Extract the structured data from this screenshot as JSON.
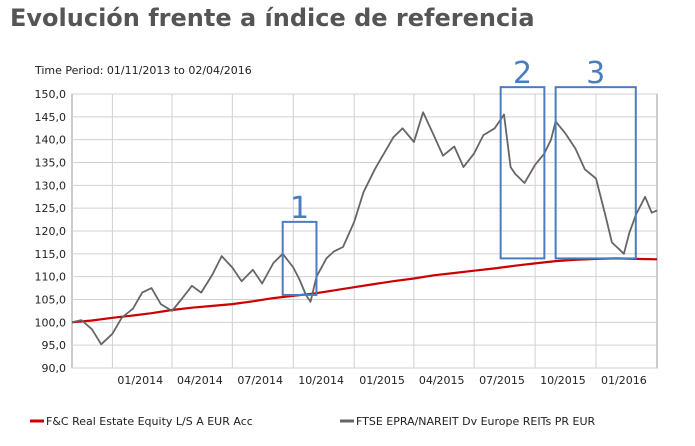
{
  "slide": {
    "title": "Evolución frente a índice de referencia"
  },
  "chart_data": {
    "type": "line",
    "title": "",
    "subtitle": "Time Period: 01/11/2013 to 02/04/2016",
    "xlabel": "",
    "ylabel": "",
    "xlim": [
      "2013-11-01",
      "2016-04-02"
    ],
    "ylim": [
      90,
      150
    ],
    "y_ticks": [
      "90,0",
      "95,0",
      "100,0",
      "105,0",
      "110,0",
      "115,0",
      "120,0",
      "125,0",
      "130,0",
      "135,0",
      "140,0",
      "145,0",
      "150,0"
    ],
    "x_ticks": [
      {
        "label": "01/2014",
        "date": "2014-01-01"
      },
      {
        "label": "04/2014",
        "date": "2014-04-01"
      },
      {
        "label": "07/2014",
        "date": "2014-07-01"
      },
      {
        "label": "10/2014",
        "date": "2014-10-01"
      },
      {
        "label": "01/2015",
        "date": "2015-01-01"
      },
      {
        "label": "04/2015",
        "date": "2015-04-01"
      },
      {
        "label": "07/2015",
        "date": "2015-07-01"
      },
      {
        "label": "10/2015",
        "date": "2015-10-01"
      },
      {
        "label": "01/2016",
        "date": "2016-01-01"
      }
    ],
    "grid": true,
    "legend_position": "bottom",
    "series": [
      {
        "name": "F&C Real Estate Equity L/S A EUR Acc",
        "color": "#cc0000",
        "points": [
          [
            "2013-11-01",
            100.0
          ],
          [
            "2013-12-01",
            100.4
          ],
          [
            "2014-01-01",
            101.0
          ],
          [
            "2014-02-01",
            101.5
          ],
          [
            "2014-03-01",
            102.0
          ],
          [
            "2014-04-01",
            102.7
          ],
          [
            "2014-05-01",
            103.2
          ],
          [
            "2014-06-01",
            103.6
          ],
          [
            "2014-07-01",
            104.0
          ],
          [
            "2014-08-01",
            104.6
          ],
          [
            "2014-09-01",
            105.3
          ],
          [
            "2014-10-01",
            105.8
          ],
          [
            "2014-11-01",
            106.3
          ],
          [
            "2014-12-01",
            107.0
          ],
          [
            "2015-01-01",
            107.7
          ],
          [
            "2015-02-01",
            108.4
          ],
          [
            "2015-03-01",
            109.0
          ],
          [
            "2015-04-01",
            109.6
          ],
          [
            "2015-05-01",
            110.3
          ],
          [
            "2015-06-01",
            110.8
          ],
          [
            "2015-07-01",
            111.3
          ],
          [
            "2015-08-01",
            111.8
          ],
          [
            "2015-09-01",
            112.4
          ],
          [
            "2015-10-01",
            112.9
          ],
          [
            "2015-11-01",
            113.4
          ],
          [
            "2015-12-01",
            113.7
          ],
          [
            "2016-01-01",
            113.9
          ],
          [
            "2016-02-01",
            114.0
          ],
          [
            "2016-03-01",
            113.9
          ],
          [
            "2016-04-02",
            113.8
          ]
        ]
      },
      {
        "name": "FTSE EPRA/NAREIT Dv Europe REITs PR EUR",
        "color": "#666666",
        "points": [
          [
            "2013-11-01",
            100.0
          ],
          [
            "2013-11-15",
            100.5
          ],
          [
            "2013-12-01",
            98.5
          ],
          [
            "2013-12-15",
            95.2
          ],
          [
            "2014-01-01",
            97.5
          ],
          [
            "2014-01-15",
            101.0
          ],
          [
            "2014-02-01",
            103.0
          ],
          [
            "2014-02-15",
            106.5
          ],
          [
            "2014-03-01",
            107.5
          ],
          [
            "2014-03-15",
            104.0
          ],
          [
            "2014-04-01",
            102.5
          ],
          [
            "2014-04-15",
            105.0
          ],
          [
            "2014-05-01",
            108.0
          ],
          [
            "2014-05-15",
            106.5
          ],
          [
            "2014-06-01",
            110.5
          ],
          [
            "2014-06-15",
            114.5
          ],
          [
            "2014-07-01",
            112.0
          ],
          [
            "2014-07-15",
            109.0
          ],
          [
            "2014-08-01",
            111.5
          ],
          [
            "2014-08-15",
            108.5
          ],
          [
            "2014-09-01",
            113.0
          ],
          [
            "2014-09-15",
            115.0
          ],
          [
            "2014-10-01",
            112.0
          ],
          [
            "2014-10-10",
            109.5
          ],
          [
            "2014-10-20",
            106.0
          ],
          [
            "2014-10-27",
            104.5
          ],
          [
            "2014-11-05",
            110.0
          ],
          [
            "2014-11-20",
            114.0
          ],
          [
            "2014-12-01",
            115.5
          ],
          [
            "2014-12-15",
            116.5
          ],
          [
            "2015-01-01",
            122.0
          ],
          [
            "2015-01-15",
            128.5
          ],
          [
            "2015-02-01",
            133.5
          ],
          [
            "2015-02-15",
            137.0
          ],
          [
            "2015-03-01",
            140.5
          ],
          [
            "2015-03-15",
            142.5
          ],
          [
            "2015-04-01",
            139.5
          ],
          [
            "2015-04-15",
            146.0
          ],
          [
            "2015-05-01",
            141.0
          ],
          [
            "2015-05-15",
            136.5
          ],
          [
            "2015-06-01",
            138.5
          ],
          [
            "2015-06-15",
            134.0
          ],
          [
            "2015-07-01",
            137.0
          ],
          [
            "2015-07-15",
            141.0
          ],
          [
            "2015-08-01",
            142.5
          ],
          [
            "2015-08-15",
            145.5
          ],
          [
            "2015-08-25",
            134.0
          ],
          [
            "2015-09-01",
            132.5
          ],
          [
            "2015-09-15",
            130.5
          ],
          [
            "2015-10-01",
            134.5
          ],
          [
            "2015-10-15",
            137.0
          ],
          [
            "2015-10-25",
            140.0
          ],
          [
            "2015-11-01",
            144.0
          ],
          [
            "2015-11-15",
            141.5
          ],
          [
            "2015-12-01",
            138.0
          ],
          [
            "2015-12-15",
            133.5
          ],
          [
            "2016-01-01",
            131.5
          ],
          [
            "2016-01-15",
            123.5
          ],
          [
            "2016-01-25",
            117.5
          ],
          [
            "2016-02-05",
            116.0
          ],
          [
            "2016-02-12",
            115.0
          ],
          [
            "2016-02-20",
            119.5
          ],
          [
            "2016-03-01",
            123.5
          ],
          [
            "2016-03-15",
            127.5
          ],
          [
            "2016-03-25",
            124.0
          ],
          [
            "2016-04-02",
            124.5
          ]
        ]
      }
    ],
    "annotations": [
      {
        "label": "1",
        "x_start": "2014-09-15",
        "x_end": "2014-11-05",
        "y_start": 106,
        "y_end": 122
      },
      {
        "label": "2",
        "x_start": "2015-08-10",
        "x_end": "2015-10-15",
        "y_start": 114,
        "y_end": 151.5
      },
      {
        "label": "3",
        "x_start": "2015-11-01",
        "x_end": "2016-03-01",
        "y_start": 114,
        "y_end": 151.5
      }
    ],
    "colors": {
      "grid": "#d0d0d0",
      "axis": "#999999",
      "annotation": "#4a7dbf"
    }
  }
}
